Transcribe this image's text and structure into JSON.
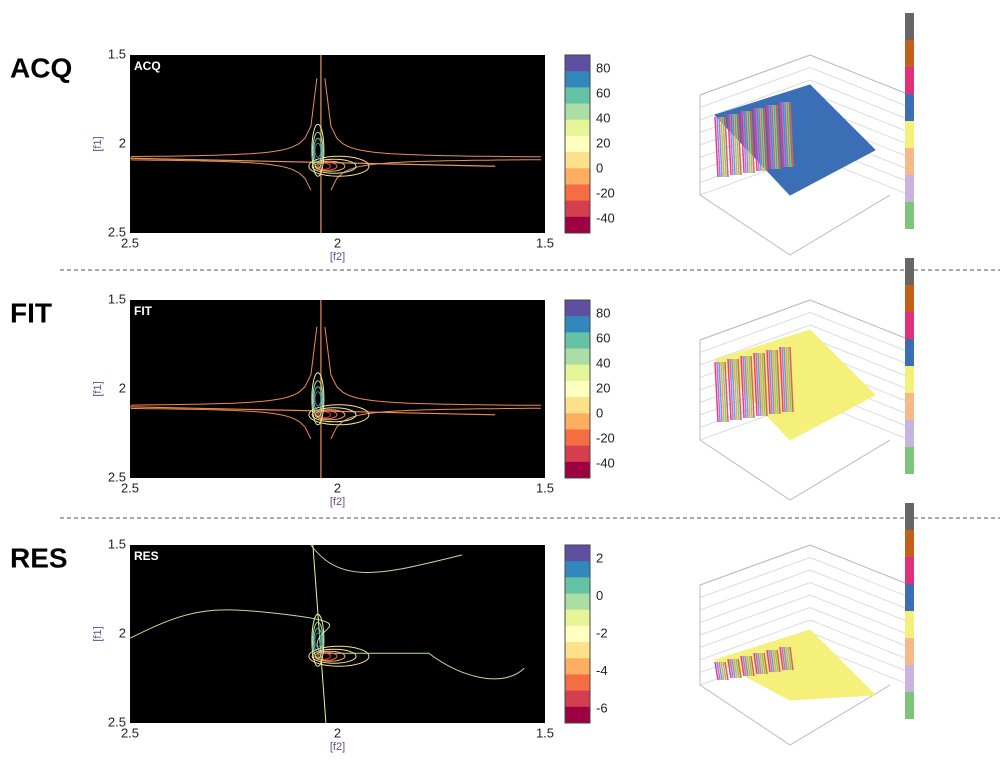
{
  "rows": [
    {
      "label": "ACQ",
      "plot": {
        "inset": "ACQ",
        "yaxis": {
          "label": "[f1]",
          "ticks": [
            "1.5",
            "2",
            "2.5"
          ]
        },
        "xaxis": {
          "label": "[f2]",
          "ticks": [
            "2.5",
            "2",
            "1.5"
          ]
        },
        "colorbar": [
          "80",
          "60",
          "40",
          "20",
          "0",
          "-20",
          "-40"
        ]
      }
    },
    {
      "label": "FIT",
      "plot": {
        "inset": "FIT",
        "yaxis": {
          "label": "[f1]",
          "ticks": [
            "1.5",
            "2",
            "2.5"
          ]
        },
        "xaxis": {
          "label": "[f2]",
          "ticks": [
            "2.5",
            "2",
            "1.5"
          ]
        },
        "colorbar": [
          "80",
          "60",
          "40",
          "20",
          "0",
          "-20",
          "-40"
        ]
      }
    },
    {
      "label": "RES",
      "plot": {
        "inset": "RES",
        "yaxis": {
          "label": "[f1]",
          "ticks": [
            "1.5",
            "2",
            "2.5"
          ]
        },
        "xaxis": {
          "label": "[f2]",
          "ticks": [
            "2.5",
            "2",
            "1.5"
          ]
        },
        "colorbar": [
          "2",
          "0",
          "-2",
          "-4",
          "-6"
        ]
      }
    }
  ]
}
